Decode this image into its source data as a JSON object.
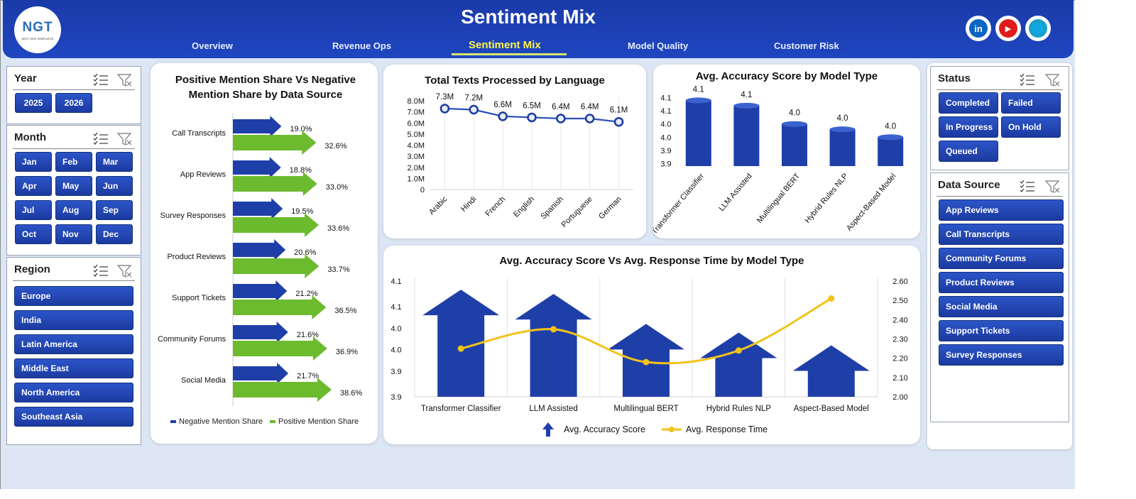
{
  "header": {
    "title": "Sentiment Mix",
    "logo_text": "NGT",
    "logo_sub": "NEXT GEN TEMPLATES",
    "nav": [
      {
        "label": "Overview"
      },
      {
        "label": "Revenue Ops"
      },
      {
        "label": "Sentiment Mix",
        "active": true
      },
      {
        "label": "Model Quality"
      },
      {
        "label": "Customer Risk"
      }
    ],
    "social": [
      {
        "icon": "linkedin-icon",
        "glyph": "in",
        "color": "#0a66c2"
      },
      {
        "icon": "youtube-icon",
        "glyph": "▶",
        "color": "#e01b1b"
      },
      {
        "icon": "globe-icon",
        "glyph": "🌐",
        "color": "#1aa0c8"
      }
    ]
  },
  "slicers": {
    "year": {
      "title": "Year",
      "items": [
        "2025",
        "2026"
      ]
    },
    "month": {
      "title": "Month",
      "items": [
        "Jan",
        "Feb",
        "Mar",
        "Apr",
        "May",
        "Jun",
        "Jul",
        "Aug",
        "Sep",
        "Oct",
        "Nov",
        "Dec"
      ]
    },
    "region": {
      "title": "Region",
      "items": [
        "Europe",
        "India",
        "Latin America",
        "Middle East",
        "North America",
        "Southeast Asia"
      ]
    },
    "status": {
      "title": "Status",
      "items": [
        "Completed",
        "Failed",
        "In Progress",
        "On Hold",
        "Queued"
      ]
    },
    "data_source": {
      "title": "Data Source",
      "items": [
        "App Reviews",
        "Call Transcripts",
        "Community Forums",
        "Product Reviews",
        "Social Media",
        "Support Tickets",
        "Survey Responses"
      ]
    }
  },
  "colors": {
    "primary_blue": "#1f3fa8",
    "green": "#6cbb2e",
    "yellow": "#f2c318",
    "header_blue": "#1f46c0"
  },
  "chart_data": [
    {
      "id": "mention_share",
      "type": "bar",
      "title": "Positive Mention Share Vs Negative Mention Share by Data Source",
      "categories": [
        "Call Transcripts",
        "App Reviews",
        "Survey Responses",
        "Product Reviews",
        "Support Tickets",
        "Community Forums",
        "Social Media"
      ],
      "series": [
        {
          "name": "Negative Mention Share",
          "values": [
            19.0,
            18.8,
            19.5,
            20.6,
            21.2,
            21.6,
            21.7
          ],
          "labels": [
            "19.0%",
            "18.8%",
            "19.5%",
            "20.6%",
            "21.2%",
            "21.6%",
            "21.7%"
          ]
        },
        {
          "name": "Positive Mention Share",
          "values": [
            32.6,
            33.0,
            33.6,
            33.7,
            36.5,
            36.9,
            38.6
          ],
          "labels": [
            "32.6%",
            "33.0%",
            "33.6%",
            "33.7%",
            "36.5%",
            "36.9%",
            "38.6%"
          ]
        }
      ],
      "legend": "bottom"
    },
    {
      "id": "texts_by_language",
      "type": "line",
      "title": "Total Texts Processed by Language",
      "categories": [
        "Arabic",
        "Hindi",
        "French",
        "English",
        "Spanish",
        "Portuguese",
        "German"
      ],
      "values": [
        7.3,
        7.2,
        6.6,
        6.5,
        6.4,
        6.4,
        6.1
      ],
      "labels": [
        "7.3M",
        "7.2M",
        "6.6M",
        "6.5M",
        "6.4M",
        "6.4M",
        "6.1M"
      ],
      "yticks": [
        "0",
        "1.0M",
        "2.0M",
        "3.0M",
        "4.0M",
        "5.0M",
        "6.0M",
        "7.0M",
        "8.0M"
      ],
      "ylim": [
        0,
        8
      ]
    },
    {
      "id": "accuracy_by_model",
      "type": "bar",
      "title": "Avg. Accuracy Score by Model Type",
      "categories": [
        "Transformer Classifier",
        "LLM Assisted",
        "Multilingual BERT",
        "Hybrid Rules NLP",
        "Aspect-Based Model"
      ],
      "values": [
        4.13,
        4.11,
        4.04,
        4.02,
        3.99
      ],
      "labels": [
        "4.1",
        "4.1",
        "4.0",
        "4.0",
        "4.0"
      ],
      "yticks": [
        "3.9",
        "3.9",
        "4.0",
        "4.0",
        "4.1",
        "4.1"
      ],
      "ylim": [
        3.88,
        4.15
      ]
    },
    {
      "id": "accuracy_vs_response",
      "type": "bar",
      "title": "Avg. Accuracy Score Vs Avg. Response Time by Model Type",
      "categories": [
        "Transformer Classifier",
        "LLM Assisted",
        "Multilingual BERT",
        "Hybrid Rules NLP",
        "Aspect-Based Model"
      ],
      "series": [
        {
          "name": "Avg. Accuracy Score",
          "type": "bar",
          "values": [
            4.13,
            4.12,
            4.05,
            4.03,
            4.0
          ]
        },
        {
          "name": "Avg. Response Time",
          "type": "line",
          "axis": "secondary",
          "values": [
            2.25,
            2.35,
            2.18,
            2.24,
            2.51
          ]
        }
      ],
      "yticks_left": [
        "3.9",
        "3.9",
        "4.0",
        "4.0",
        "4.1",
        "4.1"
      ],
      "yticks_right": [
        "2.00",
        "2.10",
        "2.20",
        "2.30",
        "2.40",
        "2.50",
        "2.60"
      ],
      "ylim_left": [
        3.88,
        4.15
      ],
      "ylim_right": [
        2.0,
        2.6
      ],
      "legend": "bottom"
    }
  ]
}
